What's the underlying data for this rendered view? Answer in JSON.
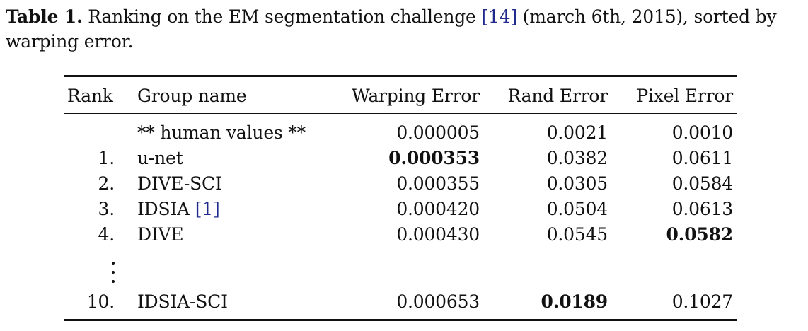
{
  "caption": {
    "label": "Table 1.",
    "text_before": " Ranking on the EM segmentation challenge ",
    "citation": "[14]",
    "text_after": " (march 6th, 2015), sorted by warping error."
  },
  "table": {
    "headers": [
      "Rank",
      "Group name",
      "Warping Error",
      "Rand Error",
      "Pixel Error"
    ],
    "rows": [
      {
        "rank": "",
        "group": "** human values **",
        "group_cite": "",
        "warping": "0.000005",
        "rand": "0.0021",
        "pixel": "0.0010"
      },
      {
        "rank": "1.",
        "group": "u-net",
        "group_cite": "",
        "warping": "0.000353",
        "rand": "0.0382",
        "pixel": "0.0611"
      },
      {
        "rank": "2.",
        "group": "DIVE-SCI",
        "group_cite": "",
        "warping": "0.000355",
        "rand": "0.0305",
        "pixel": "0.0584"
      },
      {
        "rank": "3.",
        "group": "IDSIA ",
        "group_cite": "[1]",
        "warping": "0.000420",
        "rand": "0.0504",
        "pixel": "0.0613"
      },
      {
        "rank": "4.",
        "group": "DIVE",
        "group_cite": "",
        "warping": "0.000430",
        "rand": "0.0545",
        "pixel": "0.0582"
      },
      {
        "rank": "10.",
        "group": "IDSIA-SCI",
        "group_cite": "",
        "warping": "0.000653",
        "rand": "0.0189",
        "pixel": "0.1027"
      }
    ],
    "ellipsis": "vertical-dots"
  }
}
